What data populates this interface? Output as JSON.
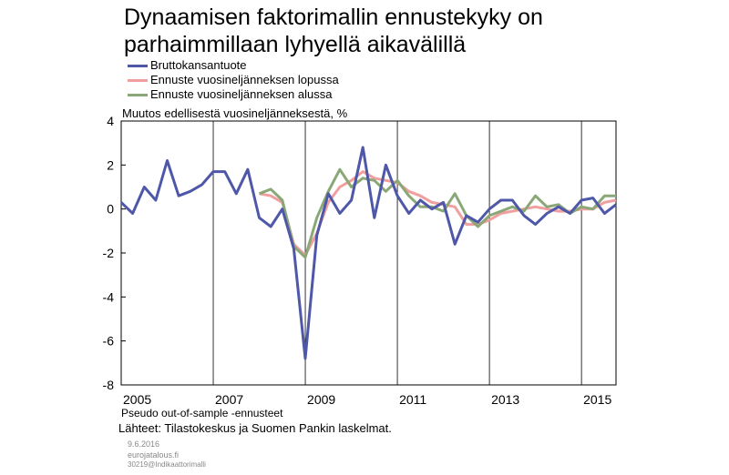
{
  "title_line1": "Dynaamisen faktorimallin ennustekyky on",
  "title_line2": "parhaimmillaan lyhyellä aikavälillä",
  "note": "Pseudo out-of-sample -ennusteet",
  "source": "Lähteet: Tilastokeskus ja Suomen Pankin laskelmat.",
  "date": "9.6.2016",
  "site": "eurojatalous.fi",
  "code": "30219@Indikaattorimalli",
  "chart_data": {
    "type": "line",
    "title": "Dynaamisen faktorimallin ennustekyky on parhaimmillaan lyhyellä aikavälillä",
    "ylabel": "Muutos edellisestä vuosineljänneksestä, %",
    "xlabel": "",
    "ylim": [
      -8,
      4
    ],
    "yticks": [
      "4",
      "2",
      "0",
      "-2",
      "-4",
      "-6",
      "-8"
    ],
    "xticks": [
      "2005",
      "2007",
      "2009",
      "2011",
      "2013",
      "2015"
    ],
    "x_start": "2005Q1",
    "x_end": "2015Q4",
    "grid": "vertical",
    "legend": "top-left",
    "series": [
      {
        "name": "Bruttokansantuote",
        "color": "#4f58a8",
        "x": [
          "2005Q1",
          "2005Q2",
          "2005Q3",
          "2005Q4",
          "2006Q1",
          "2006Q2",
          "2006Q3",
          "2006Q4",
          "2007Q1",
          "2007Q2",
          "2007Q3",
          "2007Q4",
          "2008Q1",
          "2008Q2",
          "2008Q3",
          "2008Q4",
          "2009Q1",
          "2009Q2",
          "2009Q3",
          "2009Q4",
          "2010Q1",
          "2010Q2",
          "2010Q3",
          "2010Q4",
          "2011Q1",
          "2011Q2",
          "2011Q3",
          "2011Q4",
          "2012Q1",
          "2012Q2",
          "2012Q3",
          "2012Q4",
          "2013Q1",
          "2013Q2",
          "2013Q3",
          "2013Q4",
          "2014Q1",
          "2014Q2",
          "2014Q3",
          "2014Q4",
          "2015Q1",
          "2015Q2",
          "2015Q3",
          "2015Q4"
        ],
        "values": [
          0.3,
          -0.2,
          1.0,
          0.4,
          2.2,
          0.6,
          0.8,
          1.1,
          1.7,
          1.7,
          0.7,
          1.8,
          -0.4,
          -0.8,
          0.0,
          -1.8,
          -6.8,
          -1.2,
          0.7,
          -0.2,
          0.4,
          2.8,
          -0.4,
          2.0,
          0.6,
          -0.2,
          0.4,
          0.0,
          0.3,
          -1.6,
          -0.3,
          -0.6,
          0.0,
          0.4,
          0.4,
          -0.3,
          -0.7,
          -0.2,
          0.1,
          -0.2,
          0.4,
          0.5,
          -0.2,
          0.2
        ]
      },
      {
        "name": "Ennuste vuosineljänneksen lopussa",
        "color": "#f19e9e",
        "x": [
          "2008Q1",
          "2008Q2",
          "2008Q3",
          "2008Q4",
          "2009Q1",
          "2009Q2",
          "2009Q3",
          "2009Q4",
          "2010Q1",
          "2010Q2",
          "2010Q3",
          "2010Q4",
          "2011Q1",
          "2011Q2",
          "2011Q3",
          "2011Q4",
          "2012Q1",
          "2012Q2",
          "2012Q3",
          "2012Q4",
          "2013Q1",
          "2013Q2",
          "2013Q3",
          "2013Q4",
          "2014Q1",
          "2014Q2",
          "2014Q3",
          "2014Q4",
          "2015Q1",
          "2015Q2",
          "2015Q3",
          "2015Q4"
        ],
        "values": [
          0.7,
          0.6,
          0.3,
          -1.6,
          -2.1,
          -1.1,
          0.3,
          1.0,
          1.3,
          1.7,
          1.4,
          1.3,
          1.2,
          0.8,
          0.6,
          0.3,
          0.2,
          0.1,
          -0.7,
          -0.7,
          -0.5,
          -0.2,
          -0.1,
          0.0,
          0.1,
          0.0,
          -0.1,
          -0.1,
          0.0,
          0.0,
          0.3,
          0.4
        ]
      },
      {
        "name": "Ennuste vuosineljänneksen alussa",
        "color": "#8aa877",
        "x": [
          "2008Q1",
          "2008Q2",
          "2008Q3",
          "2008Q4",
          "2009Q1",
          "2009Q2",
          "2009Q3",
          "2009Q4",
          "2010Q1",
          "2010Q2",
          "2010Q3",
          "2010Q4",
          "2011Q1",
          "2011Q2",
          "2011Q3",
          "2011Q4",
          "2012Q1",
          "2012Q2",
          "2012Q3",
          "2012Q4",
          "2013Q1",
          "2013Q2",
          "2013Q3",
          "2013Q4",
          "2014Q1",
          "2014Q2",
          "2014Q3",
          "2014Q4",
          "2015Q1",
          "2015Q2",
          "2015Q3",
          "2015Q4"
        ],
        "values": [
          0.7,
          0.9,
          0.4,
          -1.7,
          -2.2,
          -0.4,
          0.8,
          1.8,
          1.0,
          1.4,
          1.3,
          0.8,
          1.3,
          0.6,
          0.1,
          0.1,
          -0.1,
          0.7,
          -0.3,
          -0.8,
          -0.3,
          -0.1,
          0.1,
          -0.1,
          0.6,
          0.1,
          0.2,
          -0.2,
          0.1,
          0.0,
          0.6,
          0.6
        ]
      }
    ]
  }
}
